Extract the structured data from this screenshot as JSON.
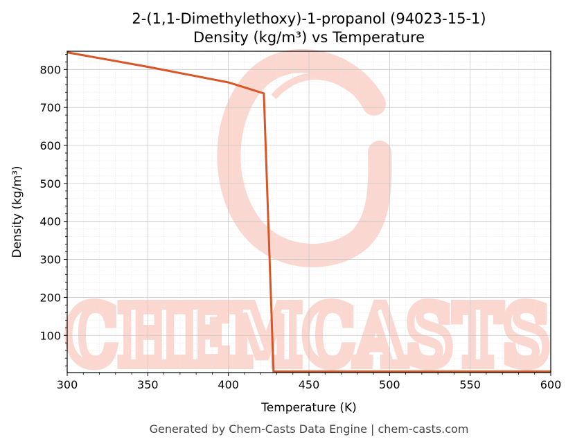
{
  "chart_data": {
    "type": "line",
    "title": "2-(1,1-Dimethylethoxy)-1-propanol (94023-15-1)",
    "subtitle": "Density (kg/m³) vs Temperature",
    "xlabel": "Temperature (K)",
    "ylabel": "Density (kg/m³)",
    "xlim": [
      300,
      600
    ],
    "ylim": [
      2,
      848
    ],
    "x_ticks": [
      300,
      350,
      400,
      450,
      500,
      550,
      600
    ],
    "y_ticks": [
      100,
      200,
      300,
      400,
      500,
      600,
      700,
      800
    ],
    "grid": true,
    "series": [
      {
        "color": "#d95525",
        "points": [
          [
            300,
            845
          ],
          [
            350,
            807
          ],
          [
            400,
            766
          ],
          [
            422,
            737
          ],
          [
            428,
            5
          ],
          [
            450,
            5
          ],
          [
            500,
            5
          ],
          [
            550,
            5
          ],
          [
            600,
            5
          ]
        ]
      }
    ]
  },
  "watermark": {
    "text": "CHEMCASTS",
    "color": "#fbd3cc"
  },
  "footer": "Generated by Chem-Casts Data Engine | chem-casts.com"
}
